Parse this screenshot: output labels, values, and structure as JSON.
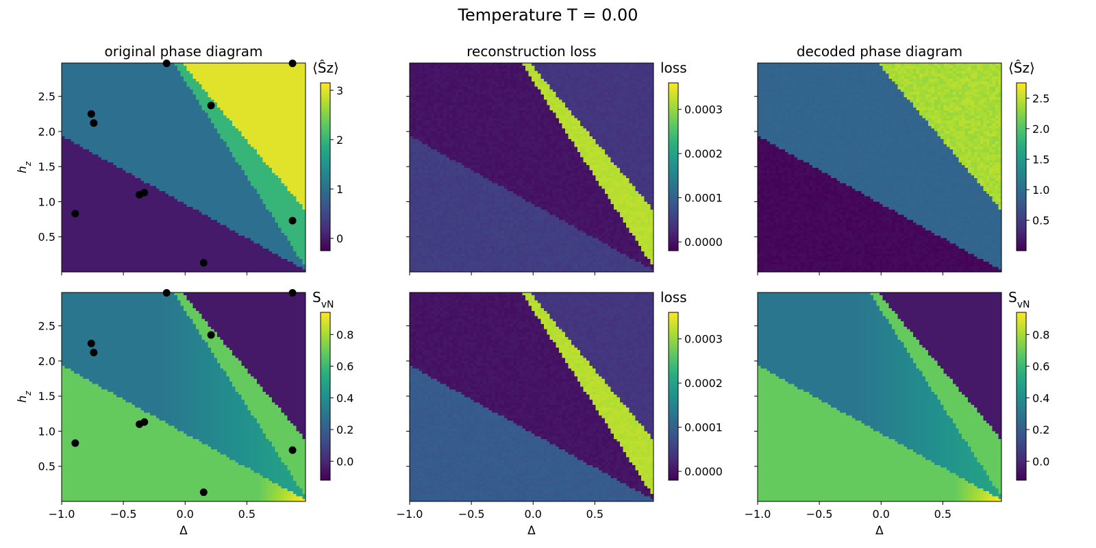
{
  "figure": {
    "suptitle": "Temperature T = 0.00"
  },
  "chart_data": [
    {
      "type": "heatmap",
      "id": "orig-sz",
      "title": "original phase diagram",
      "xlabel": "",
      "ylabel": "h_z",
      "xlim": [
        -1.0,
        0.975
      ],
      "ylim": [
        0.0,
        2.975
      ],
      "x_ticks": [
        "−1.0",
        "−0.5",
        "0.0",
        "0.5"
      ],
      "y_ticks": [
        "0.5",
        "1.0",
        "1.5",
        "2.0",
        "2.5"
      ],
      "colorbar": {
        "label": "⟨Ŝz⟩",
        "ticks": [
          "0",
          "1",
          "2",
          "3"
        ],
        "range": [
          -0.25,
          3.15
        ]
      },
      "phase_values": [
        0,
        1,
        2,
        3
      ],
      "pattern": "sz",
      "points": [
        [
          -0.15,
          2.97
        ],
        [
          0.87,
          2.97
        ],
        [
          -0.76,
          2.25
        ],
        [
          -0.74,
          2.12
        ],
        [
          0.21,
          2.37
        ],
        [
          -0.37,
          1.1
        ],
        [
          -0.33,
          1.13
        ],
        [
          -0.89,
          0.83
        ],
        [
          0.87,
          0.73
        ],
        [
          0.15,
          0.13
        ]
      ]
    },
    {
      "type": "heatmap",
      "id": "loss-sz",
      "title": "reconstruction loss",
      "xlabel": "",
      "ylabel": "",
      "xlim": [
        -1.0,
        0.975
      ],
      "ylim": [
        0.0,
        2.975
      ],
      "x_ticks": [
        "−1.0",
        "−0.5",
        "0.0",
        "0.5"
      ],
      "y_ticks": [],
      "colorbar": {
        "label": "loss",
        "ticks": [
          "0.0000",
          "0.0001",
          "0.0002",
          "0.0003"
        ],
        "range": [
          -2e-05,
          0.00036
        ]
      },
      "phase_values": [
        5e-05,
        0.0,
        0.00032,
        4e-05
      ],
      "pattern": "loss"
    },
    {
      "type": "heatmap",
      "id": "dec-sz",
      "title": "decoded phase diagram",
      "xlabel": "",
      "ylabel": "",
      "xlim": [
        -1.0,
        0.975
      ],
      "ylim": [
        0.0,
        2.975
      ],
      "x_ticks": [
        "−1.0",
        "−0.5",
        "0.0",
        "0.5"
      ],
      "y_ticks": [],
      "colorbar": {
        "label": "⟨Ŝz⟩",
        "ticks": [
          "0.5",
          "1.0",
          "1.5",
          "2.0",
          "2.5"
        ],
        "range": [
          0.0,
          2.75
        ]
      },
      "phase_values": [
        0.05,
        0.9,
        0.9,
        2.4
      ],
      "pattern": "dec"
    },
    {
      "type": "heatmap",
      "id": "orig-svn",
      "title": "",
      "xlabel": "Δ",
      "ylabel": "h_z",
      "xlim": [
        -1.0,
        0.975
      ],
      "ylim": [
        0.0,
        2.975
      ],
      "x_ticks": [
        "−1.0",
        "−0.5",
        "0.0",
        "0.5"
      ],
      "y_ticks": [
        "0.5",
        "1.0",
        "1.5",
        "2.0",
        "2.5"
      ],
      "colorbar": {
        "label": "SvN",
        "ticks": [
          "0.0",
          "0.2",
          "0.4",
          "0.6",
          "0.8"
        ],
        "range": [
          -0.12,
          0.94
        ]
      },
      "phase_values": [
        0.69,
        0.3,
        0.69,
        -0.05
      ],
      "pattern": "svn",
      "points": [
        [
          -0.15,
          2.97
        ],
        [
          0.87,
          2.97
        ],
        [
          -0.76,
          2.25
        ],
        [
          -0.74,
          2.12
        ],
        [
          0.21,
          2.37
        ],
        [
          -0.37,
          1.1
        ],
        [
          -0.33,
          1.13
        ],
        [
          -0.89,
          0.83
        ],
        [
          0.87,
          0.73
        ],
        [
          0.15,
          0.13
        ]
      ]
    },
    {
      "type": "heatmap",
      "id": "loss-svn",
      "title": "",
      "xlabel": "Δ",
      "ylabel": "",
      "xlim": [
        -1.0,
        0.975
      ],
      "ylim": [
        0.0,
        2.975
      ],
      "x_ticks": [
        "−1.0",
        "−0.5",
        "0.0",
        "0.5"
      ],
      "y_ticks": [],
      "colorbar": {
        "label": "loss",
        "ticks": [
          "0.0000",
          "0.0001",
          "0.0002",
          "0.0003"
        ],
        "range": [
          -2e-05,
          0.00036
        ]
      },
      "phase_values": [
        9e-05,
        0.0,
        0.00032,
        4e-05
      ],
      "pattern": "loss"
    },
    {
      "type": "heatmap",
      "id": "dec-svn",
      "title": "",
      "xlabel": "Δ",
      "ylabel": "",
      "xlim": [
        -1.0,
        0.975
      ],
      "ylim": [
        0.0,
        2.975
      ],
      "x_ticks": [
        "−1.0",
        "−0.5",
        "0.0",
        "0.5"
      ],
      "y_ticks": [],
      "colorbar": {
        "label": "SvN",
        "ticks": [
          "0.0",
          "0.2",
          "0.4",
          "0.6",
          "0.8"
        ],
        "range": [
          -0.12,
          0.94
        ]
      },
      "phase_values": [
        0.69,
        0.3,
        0.69,
        -0.05
      ],
      "pattern": "svn"
    }
  ]
}
